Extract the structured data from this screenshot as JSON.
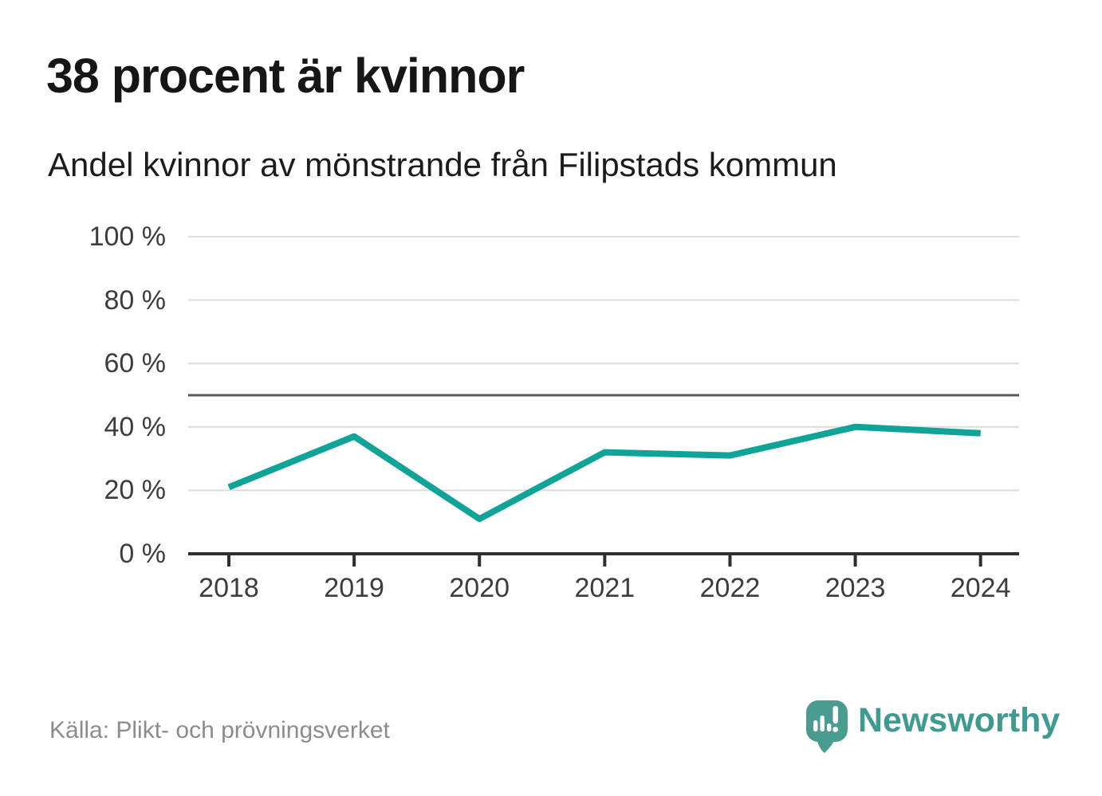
{
  "header": {
    "title": "38 procent är kvinnor",
    "subtitle": "Andel kvinnor av mönstrande från Filipstads kommun"
  },
  "footer": {
    "source": "Källa: Plikt- och prövningsverket",
    "brand": "Newsworthy",
    "logo_icon": "newsworthy-speech-bubble-bar-chart-icon"
  },
  "colors": {
    "line": "#0fa497",
    "grid": "#dcdcdc",
    "reference": "#595959",
    "axis": "#2f2f2f",
    "axis_label": "#3d3d3d",
    "title_text": "#161616",
    "source_text": "#8c8c8c",
    "brand_teal": "#3f9b90",
    "logo_fill": "#4a9c91"
  },
  "chart_data": {
    "type": "line",
    "title": "38 procent är kvinnor",
    "subtitle": "Andel kvinnor av mönstrande från Filipstads kommun",
    "x": [
      "2018",
      "2019",
      "2020",
      "2021",
      "2022",
      "2023",
      "2024"
    ],
    "series": [
      {
        "name": "Andel kvinnor av mönstrande",
        "values": [
          21,
          37,
          11,
          32,
          31,
          40,
          38
        ]
      }
    ],
    "unit": "%",
    "ylim": [
      0,
      100
    ],
    "y_ticks": [
      0,
      20,
      40,
      60,
      80,
      100
    ],
    "y_tick_labels": [
      "0 %",
      "20 %",
      "40 %",
      "60 %",
      "80 %",
      "100 %"
    ],
    "gridlines": [
      20,
      40,
      60,
      80,
      100
    ],
    "reference_line": 50,
    "grid": true,
    "legend": "none",
    "source": "Källa: Plikt- och prövningsverket"
  }
}
